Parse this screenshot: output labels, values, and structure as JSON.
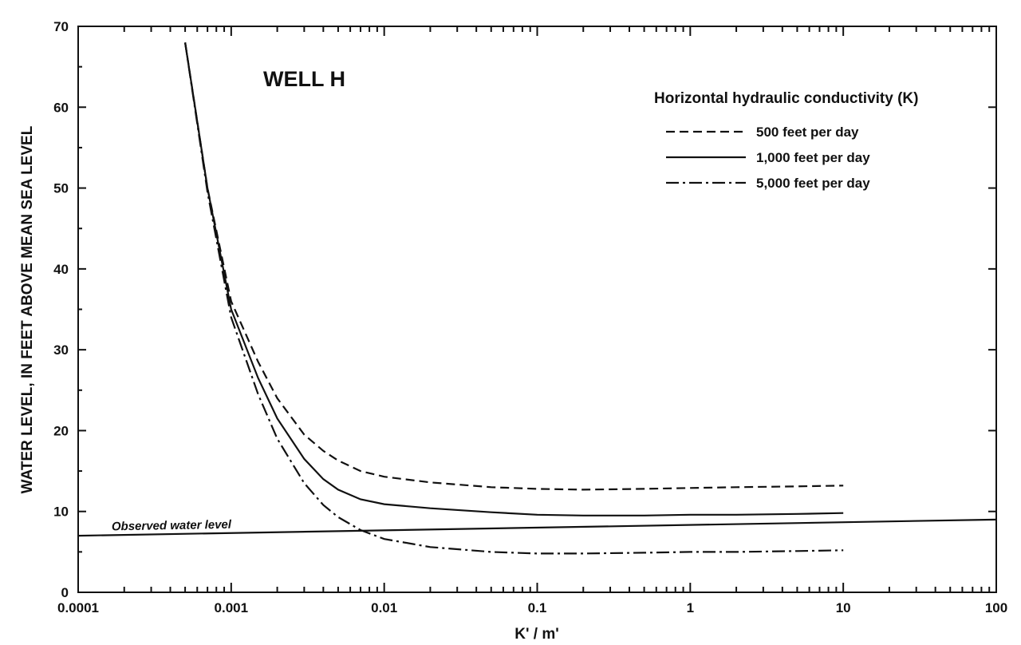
{
  "chart_data": {
    "type": "line",
    "title": "WELL H",
    "xlabel": "K' / m'",
    "ylabel": "WATER LEVEL, IN FEET ABOVE MEAN SEA LEVEL",
    "x_scale": "log",
    "xlim": [
      0.0001,
      100
    ],
    "ylim": [
      0,
      70
    ],
    "x_ticks": [
      {
        "value": 0.0001,
        "label": "0.0001"
      },
      {
        "value": 0.001,
        "label": "0.001"
      },
      {
        "value": 0.01,
        "label": "0.01"
      },
      {
        "value": 0.1,
        "label": "0.1"
      },
      {
        "value": 1,
        "label": "1"
      },
      {
        "value": 10,
        "label": "10"
      },
      {
        "value": 100,
        "label": "100"
      }
    ],
    "y_ticks": [
      {
        "value": 0,
        "label": "0"
      },
      {
        "value": 10,
        "label": "10"
      },
      {
        "value": 20,
        "label": "20"
      },
      {
        "value": 30,
        "label": "30"
      },
      {
        "value": 40,
        "label": "40"
      },
      {
        "value": 50,
        "label": "50"
      },
      {
        "value": 60,
        "label": "60"
      },
      {
        "value": 70,
        "label": "70"
      }
    ],
    "grid": false,
    "legend": {
      "title": "Horizontal hydraulic conductivity (K)",
      "position": "top-right"
    },
    "series": [
      {
        "name": "500 feet per day",
        "style": "dashed",
        "x": [
          0.0005,
          0.0007,
          0.001,
          0.0015,
          0.002,
          0.003,
          0.004,
          0.005,
          0.007,
          0.01,
          0.02,
          0.05,
          0.1,
          0.2,
          0.5,
          1,
          2,
          5,
          10
        ],
        "y": [
          68,
          50,
          36,
          28.5,
          24,
          19.5,
          17.5,
          16.3,
          15,
          14.3,
          13.6,
          13,
          12.8,
          12.7,
          12.8,
          12.9,
          13,
          13.1,
          13.2
        ]
      },
      {
        "name": "1,000 feet per day",
        "style": "solid",
        "x": [
          0.0005,
          0.0007,
          0.001,
          0.0015,
          0.002,
          0.003,
          0.004,
          0.005,
          0.007,
          0.01,
          0.02,
          0.05,
          0.1,
          0.2,
          0.5,
          1,
          2,
          5,
          10
        ],
        "y": [
          68,
          50,
          35,
          26.5,
          21.5,
          16.5,
          14,
          12.7,
          11.5,
          10.9,
          10.4,
          9.9,
          9.6,
          9.5,
          9.5,
          9.6,
          9.6,
          9.7,
          9.8
        ]
      },
      {
        "name": "5,000 feet per day",
        "style": "dash-dot",
        "x": [
          0.0005,
          0.0007,
          0.001,
          0.0015,
          0.002,
          0.003,
          0.004,
          0.005,
          0.007,
          0.01,
          0.02,
          0.05,
          0.1,
          0.2,
          0.5,
          1,
          2,
          5,
          10
        ],
        "y": [
          68,
          49.5,
          34,
          24.5,
          19,
          13.5,
          10.8,
          9.3,
          7.7,
          6.6,
          5.6,
          5,
          4.8,
          4.8,
          4.9,
          5,
          5,
          5.1,
          5.2
        ]
      }
    ],
    "annotations": [
      {
        "text": "Observed water level",
        "x": [
          0.0001,
          100
        ],
        "y": [
          7,
          9
        ]
      }
    ]
  }
}
